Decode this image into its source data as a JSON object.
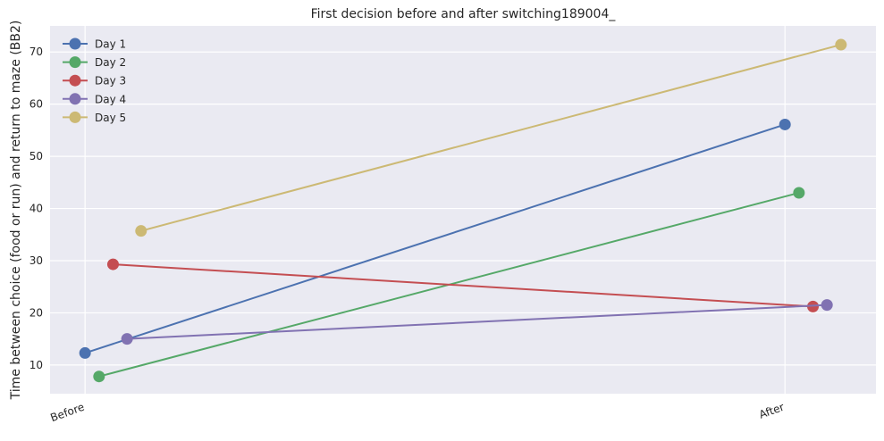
{
  "chart_data": {
    "type": "line",
    "title": "First decision before and after switching189004_",
    "xlabel": "",
    "ylabel": "Time between choice (food or run) and return to maze (BB2)",
    "categories": [
      "Before",
      "After"
    ],
    "xlim": [
      -0.05,
      1.13
    ],
    "ylim": [
      4.5,
      75
    ],
    "yticks": [
      10,
      20,
      30,
      40,
      50,
      60,
      70
    ],
    "grid": true,
    "legend_position": "top-left",
    "series": [
      {
        "name": "Day 1",
        "color": "#4c72b0",
        "x": [
          0.0,
          1.0
        ],
        "values": [
          12.3,
          56.1
        ]
      },
      {
        "name": "Day 2",
        "color": "#55a868",
        "x": [
          0.02,
          1.02
        ],
        "values": [
          7.8,
          43.0
        ]
      },
      {
        "name": "Day 3",
        "color": "#c44e52",
        "x": [
          0.04,
          1.04
        ],
        "values": [
          29.3,
          21.2
        ]
      },
      {
        "name": "Day 4",
        "color": "#8172b2",
        "x": [
          0.06,
          1.06
        ],
        "values": [
          15.0,
          21.5
        ]
      },
      {
        "name": "Day 5",
        "color": "#ccb974",
        "x": [
          0.08,
          1.08
        ],
        "values": [
          35.7,
          71.4
        ]
      }
    ]
  }
}
